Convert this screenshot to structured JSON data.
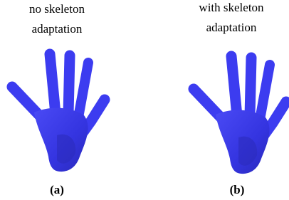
{
  "panels": [
    {
      "caption_lines": [
        "no skeleton",
        "adaptation"
      ],
      "label": "(a)"
    },
    {
      "caption_lines": [
        "with skeleton",
        "adaptation"
      ],
      "label": "(b)"
    }
  ]
}
